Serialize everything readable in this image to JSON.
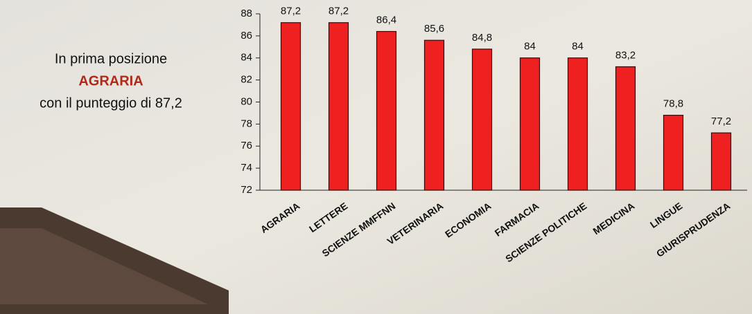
{
  "chart_data": {
    "type": "bar",
    "annotations": [
      "In prima posizione",
      "AGRARIA",
      "con il punteggio di 87,2"
    ],
    "categories": [
      "AGRARIA",
      "LETTERE",
      "SCIENZE MMFFNN",
      "VETERINARIA",
      "ECONOMIA",
      "FARMACIA",
      "SCIENZE POLITICHE",
      "MEDICINA",
      "LINGUE",
      "GIURISPRUDENZA"
    ],
    "values": [
      87.2,
      87.2,
      86.4,
      85.6,
      84.8,
      84,
      84,
      83.2,
      78.8,
      77.2
    ],
    "value_labels": [
      "87,2",
      "87,2",
      "86,4",
      "85,6",
      "84,8",
      "84",
      "84",
      "83,2",
      "78,8",
      "77,2"
    ],
    "color": "#ee2020",
    "ylim": [
      72,
      88
    ],
    "yticks": [
      72,
      74,
      76,
      78,
      80,
      82,
      84,
      86,
      88
    ],
    "grid": false
  }
}
